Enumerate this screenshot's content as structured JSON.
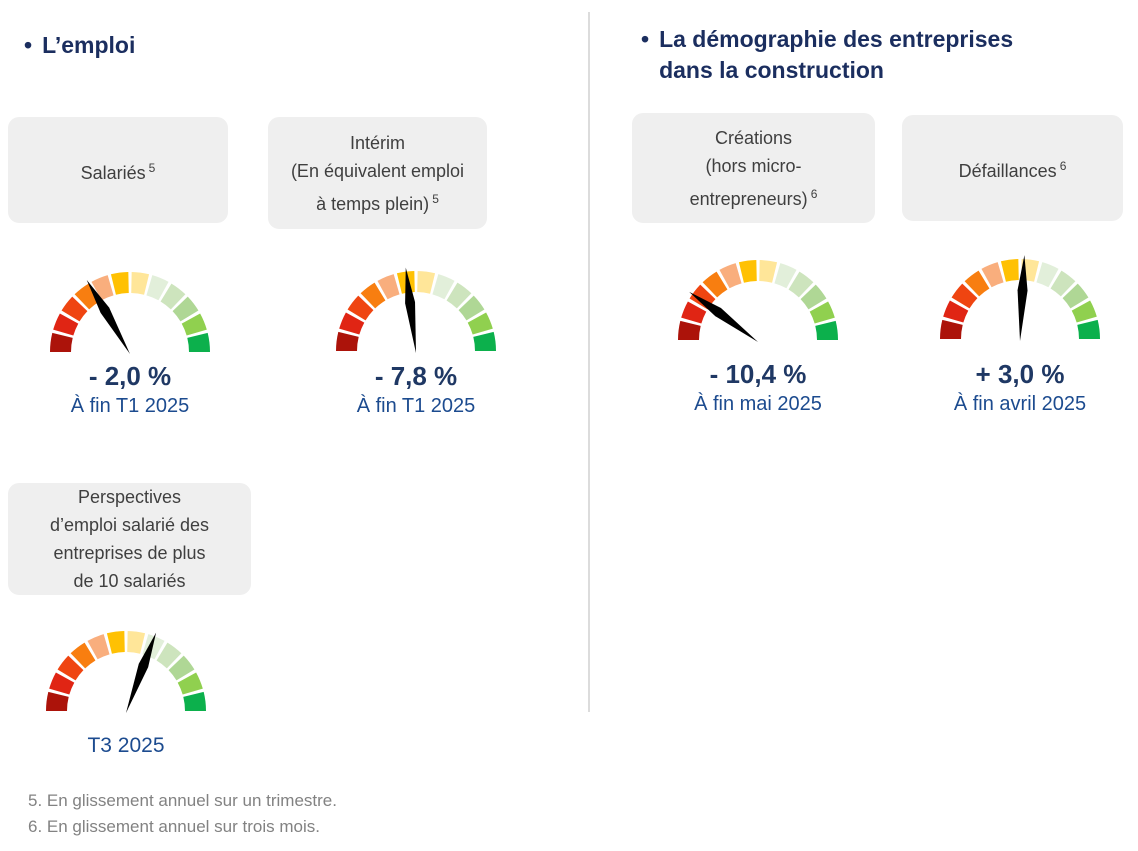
{
  "ui": {
    "bullet": "•"
  },
  "colors": {
    "heading": "#1B2E5F",
    "value": "#1F3864",
    "date": "#1C4B8F",
    "box_bg": "#EFEFEF",
    "box_text": "#3F3F3F",
    "footnote": "#828282",
    "divider": "#DCDCDC",
    "needle": "#000000"
  },
  "gauge": {
    "segment_colors": [
      "#AC130A",
      "#E02514",
      "#EF4511",
      "#F87E10",
      "#F9AE7D",
      "#FFC103",
      "#FFE699",
      "#E2EFDA",
      "#CDE4BD",
      "#AFD795",
      "#90D04F",
      "#0CB04C"
    ],
    "outer_radius": 80,
    "inner_radius": 59,
    "gap_deg": 2.4,
    "needle_length": 84
  },
  "left": {
    "title": "L’emploi",
    "cards": [
      {
        "label": "Salariés",
        "sup": "5",
        "value": "- 2,0 %",
        "date": "À fin T1 2025",
        "needle_angle": 121
      },
      {
        "label": "Intérim",
        "sublabel": "(En équivalent emploi à temps plein)",
        "sup": "5",
        "value": "- 7,8 %",
        "date": "À fin T1 2025",
        "needle_angle": 97
      }
    ],
    "outlook": {
      "label": "Perspectives d’emploi salarié des entreprises de plus de 10 salariés",
      "date": "T3 2025",
      "needle_angle": 69
    }
  },
  "right": {
    "title_lines": [
      "La démographie des entreprises",
      "dans la construction"
    ],
    "cards": [
      {
        "label": "Créations",
        "sublabel": "(hors micro-entrepreneurs)",
        "sup": "6",
        "value": "- 10,4 %",
        "date": "À fin mai 2025",
        "needle_angle": 145
      },
      {
        "label": "Défaillances",
        "sup": "6",
        "value": "+ 3,0 %",
        "date": "À fin avril 2025",
        "needle_angle": 87
      }
    ]
  },
  "footnotes": [
    "5. En glissement annuel sur un trimestre.",
    "6. En glissement annuel sur trois mois."
  ],
  "chart_data": [
    {
      "type": "gauge",
      "title": "Salariés",
      "value": -2.0,
      "value_label": "- 2,0 %",
      "period": "À fin T1 2025",
      "scale": "semicircle 180°, 12 segments dark-red to green",
      "needle_angle_deg": 121
    },
    {
      "type": "gauge",
      "title": "Intérim (En équivalent emploi à temps plein)",
      "value": -7.8,
      "value_label": "- 7,8 %",
      "period": "À fin T1 2025",
      "scale": "semicircle 180°, 12 segments dark-red to green",
      "needle_angle_deg": 97
    },
    {
      "type": "gauge",
      "title": "Créations (hors micro-entrepreneurs)",
      "value": -10.4,
      "value_label": "- 10,4 %",
      "period": "À fin mai 2025",
      "scale": "semicircle 180°, 12 segments dark-red to green",
      "needle_angle_deg": 145
    },
    {
      "type": "gauge",
      "title": "Défaillances",
      "value": 3.0,
      "value_label": "+ 3,0 %",
      "period": "À fin avril 2025",
      "scale": "semicircle 180°, 12 segments dark-red to green",
      "needle_angle_deg": 87
    },
    {
      "type": "gauge",
      "title": "Perspectives d’emploi salarié des entreprises de plus de 10 salariés",
      "value": null,
      "value_label": "",
      "period": "T3 2025",
      "scale": "semicircle 180°, 12 segments dark-red to green",
      "needle_angle_deg": 69
    }
  ]
}
